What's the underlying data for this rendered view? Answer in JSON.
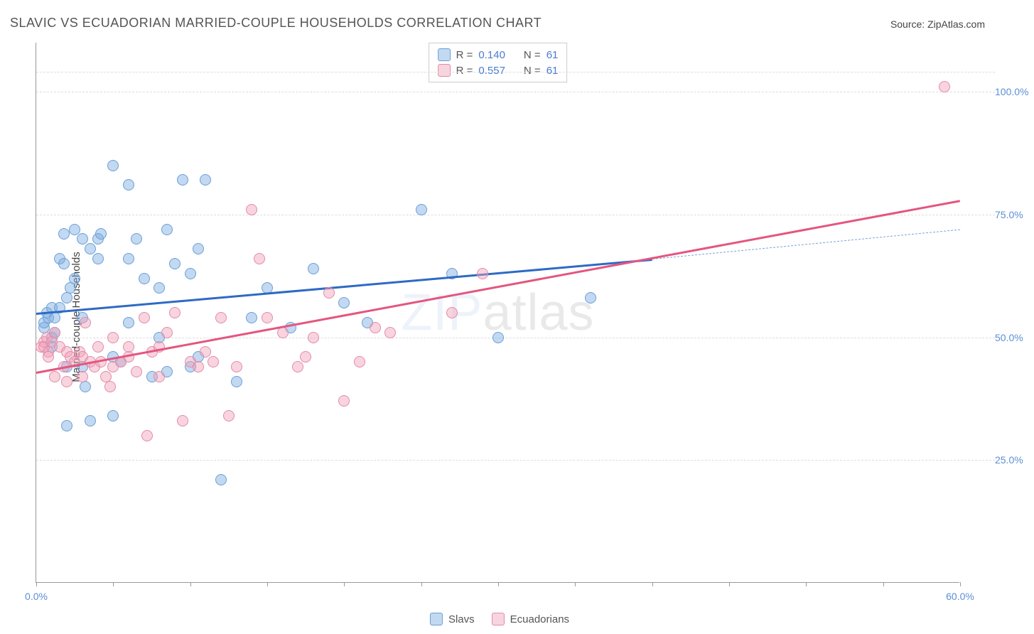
{
  "title": "SLAVIC VS ECUADORIAN MARRIED-COUPLE HOUSEHOLDS CORRELATION CHART",
  "source": "Source: ZipAtlas.com",
  "ylabel": "Married-couple Households",
  "watermark_a": "ZIP",
  "watermark_b": "atlas",
  "chart": {
    "type": "scatter",
    "xlim": [
      0,
      60
    ],
    "ylim": [
      0,
      110
    ],
    "xtick_positions": [
      0,
      5,
      10,
      15,
      20,
      25,
      30,
      35,
      40,
      45,
      50,
      55,
      60
    ],
    "xtick_labels": {
      "0": "0.0%",
      "60": "60.0%"
    },
    "ytick_positions": [
      25,
      50,
      75,
      100
    ],
    "ytick_labels": [
      "25.0%",
      "50.0%",
      "75.0%",
      "100.0%"
    ],
    "grid_positions": [
      25,
      50,
      75,
      100,
      104
    ],
    "background_color": "#ffffff",
    "grid_color": "#dddddd",
    "axis_color": "#999999",
    "tick_label_color": "#5b8fd6",
    "point_radius": 8,
    "point_border_width": 1.5,
    "series": [
      {
        "name": "Slavs",
        "fill_color": "rgba(120,170,225,0.45)",
        "border_color": "#6a9fd8",
        "reg_color": "#2e6ac4",
        "reg_dash_color": "#7aa5d9",
        "r_value": "0.140",
        "n_value": "61",
        "regression": {
          "x1": 0,
          "y1": 55,
          "x2": 40,
          "y2": 66,
          "ext_x2": 60,
          "ext_y2": 72
        },
        "points": [
          [
            0.5,
            52
          ],
          [
            0.5,
            53
          ],
          [
            0.7,
            55
          ],
          [
            0.8,
            54
          ],
          [
            1.0,
            56
          ],
          [
            1.0,
            50
          ],
          [
            1.0,
            48
          ],
          [
            1.2,
            51
          ],
          [
            1.2,
            54
          ],
          [
            1.5,
            56
          ],
          [
            1.5,
            66
          ],
          [
            1.8,
            65
          ],
          [
            1.8,
            71
          ],
          [
            2.0,
            58
          ],
          [
            2.0,
            44
          ],
          [
            2.0,
            32
          ],
          [
            2.2,
            60
          ],
          [
            2.5,
            62
          ],
          [
            2.5,
            72
          ],
          [
            3.0,
            70
          ],
          [
            3.0,
            54
          ],
          [
            3.0,
            44
          ],
          [
            3.2,
            40
          ],
          [
            3.5,
            33
          ],
          [
            3.5,
            68
          ],
          [
            4.0,
            66
          ],
          [
            4.0,
            70
          ],
          [
            4.2,
            71
          ],
          [
            5.0,
            85
          ],
          [
            5.0,
            46
          ],
          [
            5.0,
            34
          ],
          [
            5.5,
            45
          ],
          [
            6.0,
            81
          ],
          [
            6.0,
            66
          ],
          [
            6.0,
            53
          ],
          [
            6.5,
            70
          ],
          [
            7.0,
            62
          ],
          [
            7.5,
            42
          ],
          [
            8.0,
            60
          ],
          [
            8.0,
            50
          ],
          [
            8.5,
            72
          ],
          [
            8.5,
            43
          ],
          [
            9.0,
            65
          ],
          [
            9.5,
            82
          ],
          [
            10.0,
            63
          ],
          [
            10.0,
            44
          ],
          [
            10.5,
            68
          ],
          [
            10.5,
            46
          ],
          [
            11.0,
            82
          ],
          [
            12.0,
            21
          ],
          [
            13.0,
            41
          ],
          [
            14.0,
            54
          ],
          [
            15.0,
            60
          ],
          [
            16.5,
            52
          ],
          [
            18.0,
            64
          ],
          [
            20.0,
            57
          ],
          [
            21.5,
            53
          ],
          [
            25.0,
            76
          ],
          [
            27.0,
            63
          ],
          [
            30.0,
            50
          ],
          [
            36.0,
            58
          ]
        ]
      },
      {
        "name": "Ecuadorians",
        "fill_color": "rgba(240,160,185,0.45)",
        "border_color": "#e38aa8",
        "reg_color": "#e4567f",
        "reg_dash_color": "#e895ae",
        "r_value": "0.557",
        "n_value": "61",
        "regression": {
          "x1": 0,
          "y1": 43,
          "x2": 60,
          "y2": 78,
          "ext_x2": 60,
          "ext_y2": 78
        },
        "points": [
          [
            0.3,
            48
          ],
          [
            0.5,
            49
          ],
          [
            0.5,
            48
          ],
          [
            0.7,
            50
          ],
          [
            0.8,
            47
          ],
          [
            0.8,
            46
          ],
          [
            1.0,
            49
          ],
          [
            1.2,
            51
          ],
          [
            1.2,
            42
          ],
          [
            1.5,
            48
          ],
          [
            1.8,
            44
          ],
          [
            2.0,
            47
          ],
          [
            2.0,
            41
          ],
          [
            2.2,
            46
          ],
          [
            2.5,
            45
          ],
          [
            2.8,
            47
          ],
          [
            3.0,
            46
          ],
          [
            3.0,
            42
          ],
          [
            3.2,
            53
          ],
          [
            3.5,
            45
          ],
          [
            3.8,
            44
          ],
          [
            4.0,
            48
          ],
          [
            4.2,
            45
          ],
          [
            4.5,
            42
          ],
          [
            4.8,
            40
          ],
          [
            5.0,
            44
          ],
          [
            5.0,
            50
          ],
          [
            5.5,
            45
          ],
          [
            6.0,
            46
          ],
          [
            6.0,
            48
          ],
          [
            6.5,
            43
          ],
          [
            7.0,
            54
          ],
          [
            7.2,
            30
          ],
          [
            7.5,
            47
          ],
          [
            8.0,
            42
          ],
          [
            8.0,
            48
          ],
          [
            8.5,
            51
          ],
          [
            9.0,
            55
          ],
          [
            9.5,
            33
          ],
          [
            10.0,
            45
          ],
          [
            10.5,
            44
          ],
          [
            11.0,
            47
          ],
          [
            11.5,
            45
          ],
          [
            12.0,
            54
          ],
          [
            12.5,
            34
          ],
          [
            13.0,
            44
          ],
          [
            14.0,
            76
          ],
          [
            14.5,
            66
          ],
          [
            15.0,
            54
          ],
          [
            16.0,
            51
          ],
          [
            17.0,
            44
          ],
          [
            18.0,
            50
          ],
          [
            19.0,
            59
          ],
          [
            20.0,
            37
          ],
          [
            21.0,
            45
          ],
          [
            22.0,
            52
          ],
          [
            23.0,
            51
          ],
          [
            27.0,
            55
          ],
          [
            29.0,
            63
          ],
          [
            59.0,
            101
          ],
          [
            17.5,
            46
          ]
        ]
      }
    ]
  },
  "legend": {
    "r_label": "R =",
    "n_label": "N ="
  }
}
